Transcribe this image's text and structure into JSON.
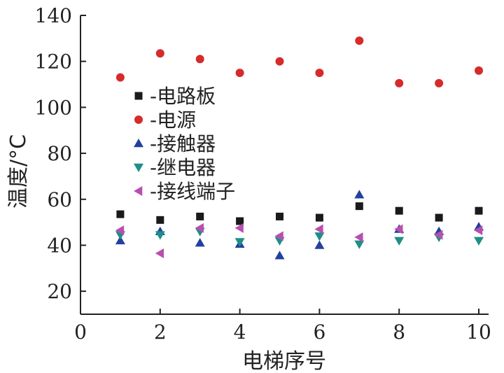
{
  "chart_data": {
    "type": "scatter",
    "xlabel": "电梯序号",
    "ylabel": "温度/°C",
    "xlim": [
      0,
      10
    ],
    "ylim": [
      10,
      140
    ],
    "xticks": [
      "0",
      "2",
      "4",
      "6",
      "8",
      "10"
    ],
    "yticks": [
      "20",
      "40",
      "60",
      "80",
      "100",
      "120",
      "140"
    ],
    "legend_position": "upper-left",
    "series": [
      {
        "name": "-电路板",
        "marker": "square",
        "color": "#1a1a1a",
        "x": [
          1,
          2,
          3,
          4,
          5,
          6,
          7,
          8,
          9,
          10
        ],
        "y": [
          53.5,
          51,
          52.5,
          50.5,
          52.5,
          52,
          57,
          55,
          52,
          55
        ]
      },
      {
        "name": "-电源",
        "marker": "circle",
        "color": "#d62b2b",
        "x": [
          1,
          2,
          3,
          4,
          5,
          6,
          7,
          8,
          9,
          10
        ],
        "y": [
          113,
          123.5,
          121,
          115,
          120,
          115,
          129,
          110.5,
          110.5,
          116
        ]
      },
      {
        "name": "-接触器",
        "marker": "triangle-up",
        "color": "#2340a0",
        "x": [
          1,
          2,
          3,
          4,
          5,
          6,
          7,
          8,
          9,
          10
        ],
        "y": [
          42,
          46,
          41,
          40.5,
          35.5,
          40,
          62,
          47,
          46,
          48
        ]
      },
      {
        "name": "-继电器",
        "marker": "triangle-down",
        "color": "#1e8f86",
        "x": [
          1,
          2,
          3,
          4,
          5,
          6,
          7,
          8,
          9,
          10
        ],
        "y": [
          44.5,
          44.5,
          46,
          41.5,
          42,
          44,
          40.5,
          42,
          43.5,
          42
        ]
      },
      {
        "name": "-接线端子",
        "marker": "triangle-left",
        "color": "#b84fb0",
        "x": [
          1,
          2,
          3,
          4,
          5,
          6,
          7,
          8,
          9,
          10
        ],
        "y": [
          46.5,
          36.5,
          47.5,
          47.5,
          44,
          47,
          43.5,
          47,
          44.5,
          46.5
        ]
      }
    ]
  }
}
